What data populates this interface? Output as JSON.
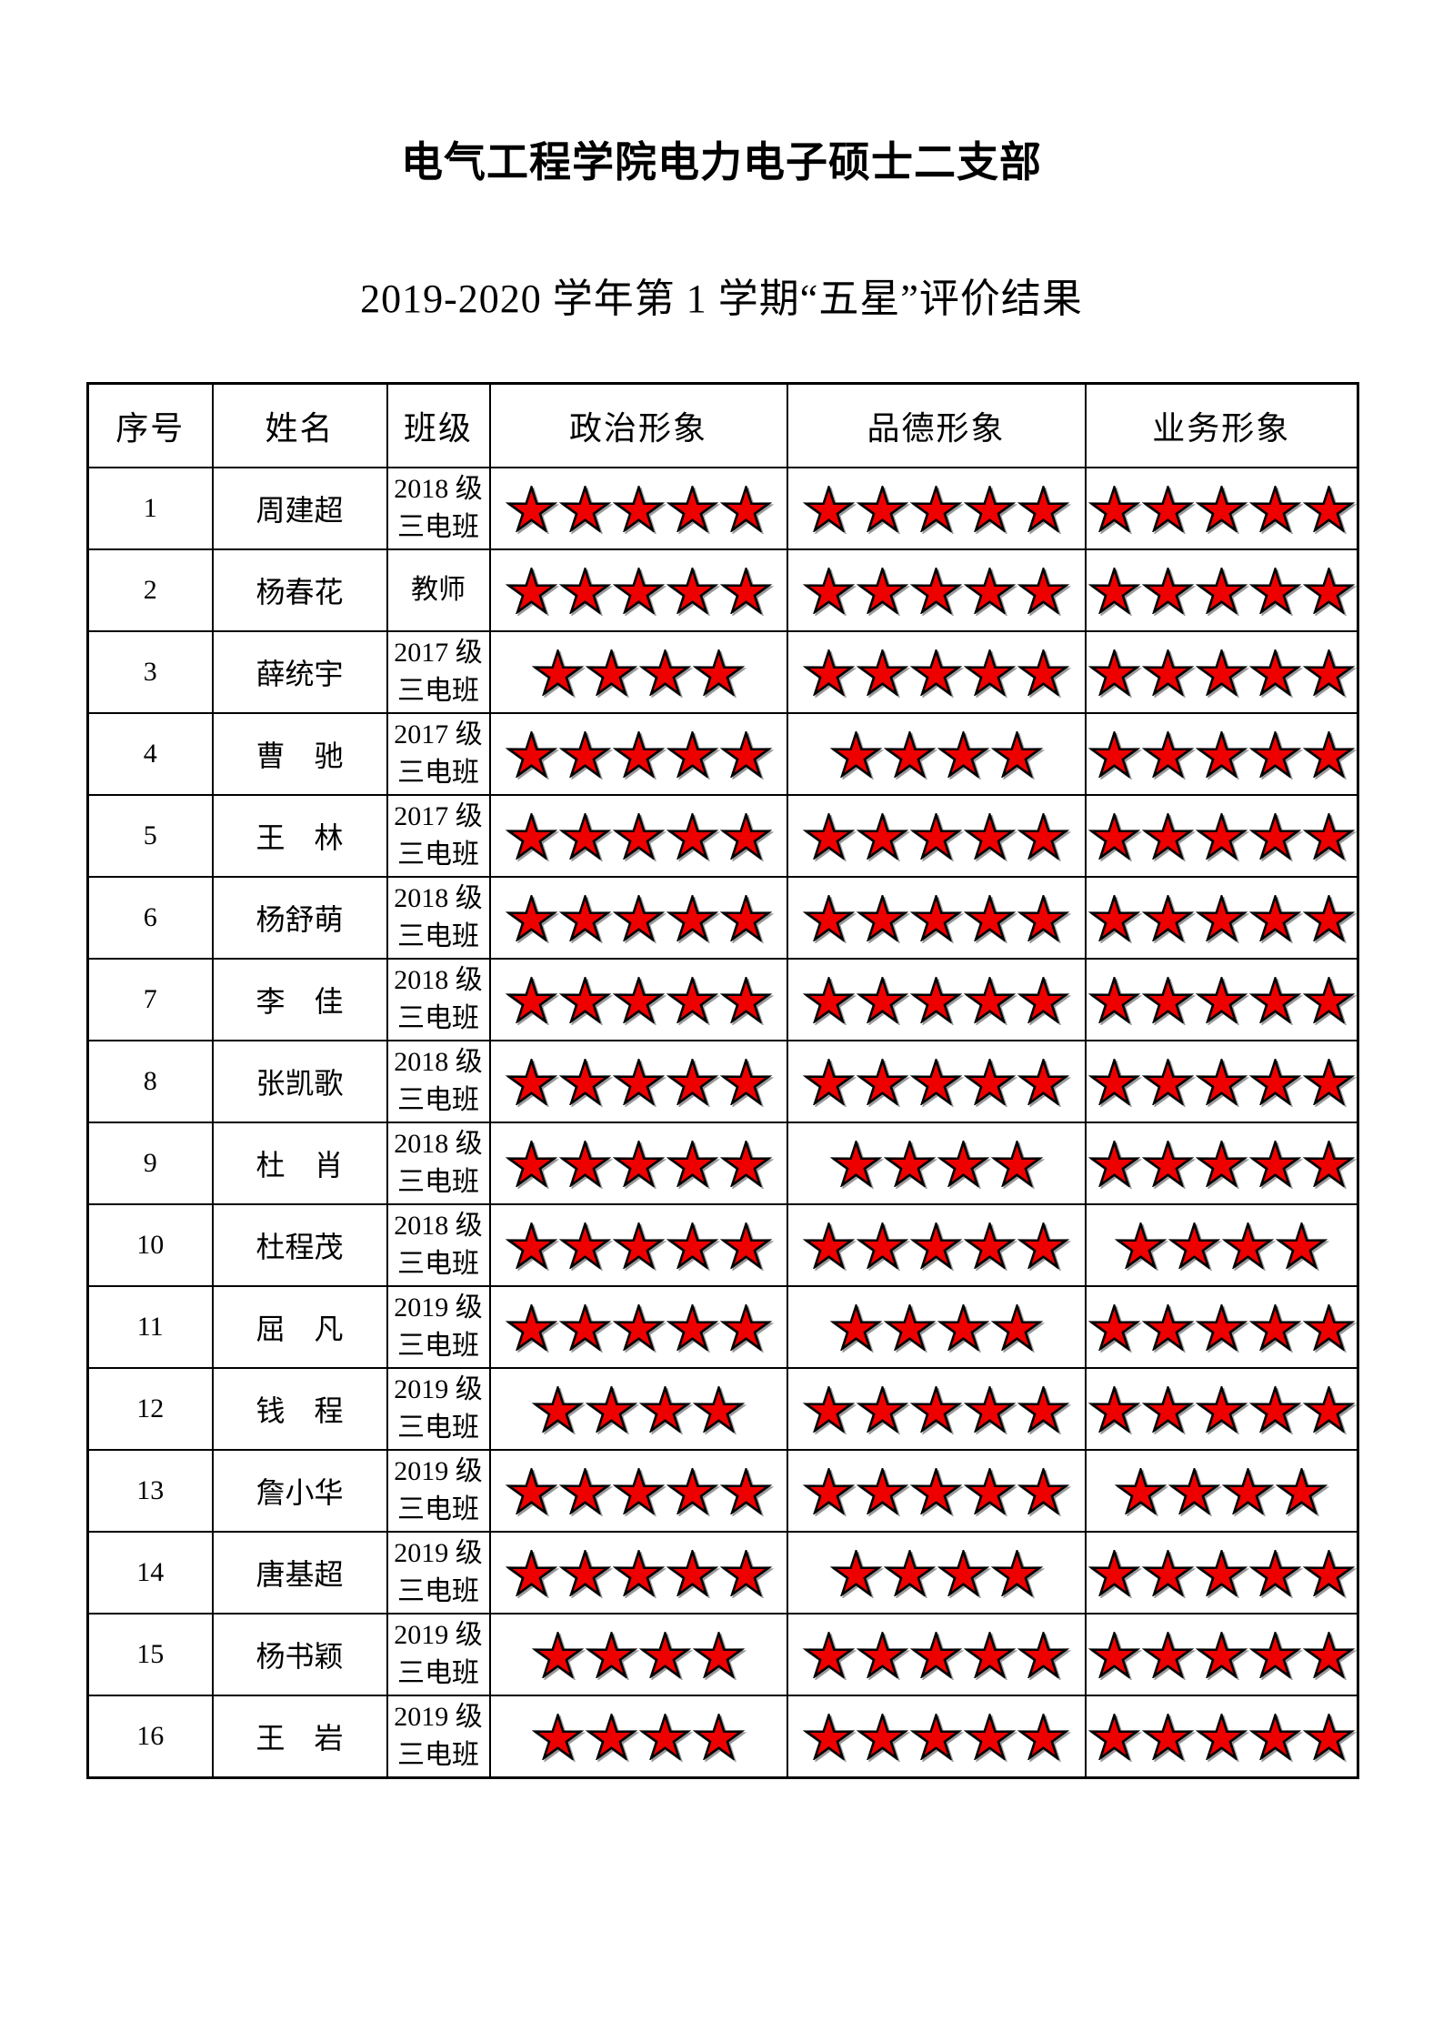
{
  "page": {
    "title": "电气工程学院电力电子硕士二支部",
    "subtitle": "2019-2020 学年第 1 学期“五星”评价结果"
  },
  "colors": {
    "star_fill": "#ee0000",
    "star_stroke": "#000000",
    "border": "#000000",
    "text": "#000000"
  },
  "table": {
    "headers": [
      "序号",
      "姓名",
      "班级",
      "政治形象",
      "品德形象",
      "业务形象"
    ],
    "star_symbol_name": "red-star-icon",
    "max_stars": 5,
    "rows": [
      {
        "index": "1",
        "name": "周建超",
        "class_lines": [
          "2018 级",
          "三电班"
        ],
        "stars": {
          "political": 5,
          "moral": 5,
          "professional": 5
        }
      },
      {
        "index": "2",
        "name": "杨春花",
        "class_lines": [
          "教师"
        ],
        "stars": {
          "political": 5,
          "moral": 5,
          "professional": 5
        }
      },
      {
        "index": "3",
        "name": "薛统宇",
        "class_lines": [
          "2017 级",
          "三电班"
        ],
        "stars": {
          "political": 4,
          "moral": 5,
          "professional": 5
        }
      },
      {
        "index": "4",
        "name": "曹驰",
        "class_lines": [
          "2017 级",
          "三电班"
        ],
        "stars": {
          "political": 5,
          "moral": 4,
          "professional": 5
        }
      },
      {
        "index": "5",
        "name": "王林",
        "class_lines": [
          "2017 级",
          "三电班"
        ],
        "stars": {
          "political": 5,
          "moral": 5,
          "professional": 5
        }
      },
      {
        "index": "6",
        "name": "杨舒萌",
        "class_lines": [
          "2018 级",
          "三电班"
        ],
        "stars": {
          "political": 5,
          "moral": 5,
          "professional": 5
        }
      },
      {
        "index": "7",
        "name": "李佳",
        "class_lines": [
          "2018 级",
          "三电班"
        ],
        "stars": {
          "political": 5,
          "moral": 5,
          "professional": 5
        }
      },
      {
        "index": "8",
        "name": "张凯歌",
        "class_lines": [
          "2018 级",
          "三电班"
        ],
        "stars": {
          "political": 5,
          "moral": 5,
          "professional": 5
        }
      },
      {
        "index": "9",
        "name": "杜肖",
        "class_lines": [
          "2018 级",
          "三电班"
        ],
        "stars": {
          "political": 5,
          "moral": 4,
          "professional": 5
        }
      },
      {
        "index": "10",
        "name": "杜程茂",
        "class_lines": [
          "2018 级",
          "三电班"
        ],
        "stars": {
          "political": 5,
          "moral": 5,
          "professional": 4
        }
      },
      {
        "index": "11",
        "name": "屈凡",
        "class_lines": [
          "2019 级",
          "三电班"
        ],
        "stars": {
          "political": 5,
          "moral": 4,
          "professional": 5
        }
      },
      {
        "index": "12",
        "name": "钱程",
        "class_lines": [
          "2019 级",
          "三电班"
        ],
        "stars": {
          "political": 4,
          "moral": 5,
          "professional": 5
        }
      },
      {
        "index": "13",
        "name": "詹小华",
        "class_lines": [
          "2019 级",
          "三电班"
        ],
        "stars": {
          "political": 5,
          "moral": 5,
          "professional": 4
        }
      },
      {
        "index": "14",
        "name": "唐基超",
        "class_lines": [
          "2019 级",
          "三电班"
        ],
        "stars": {
          "political": 5,
          "moral": 4,
          "professional": 5
        }
      },
      {
        "index": "15",
        "name": "杨书颖",
        "class_lines": [
          "2019 级",
          "三电班"
        ],
        "stars": {
          "political": 4,
          "moral": 5,
          "professional": 5
        }
      },
      {
        "index": "16",
        "name": "王岩",
        "class_lines": [
          "2019 级",
          "三电班"
        ],
        "stars": {
          "political": 4,
          "moral": 5,
          "professional": 5
        }
      }
    ]
  }
}
